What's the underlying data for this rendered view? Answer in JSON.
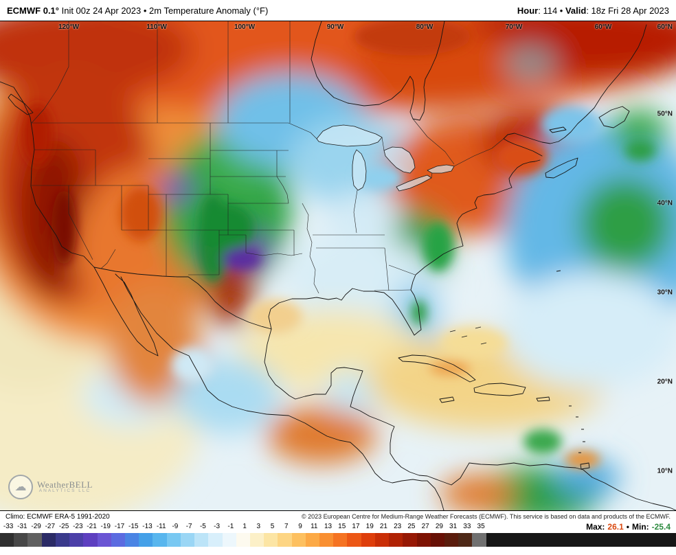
{
  "header": {
    "model": "ECMWF 0.1°",
    "init": " Init 00z 24 Apr 2023 • 2m Temperature Anomaly (°F)",
    "hour_label": "Hour",
    "hour_value": ": 114 • ",
    "valid_label": "Valid",
    "valid_value": ": 18z Fri 28 Apr 2023"
  },
  "map": {
    "lon_labels": [
      "120°W",
      "110°W",
      "100°W",
      "90°W",
      "80°W",
      "70°W",
      "60°W"
    ],
    "lat_labels": [
      "60°N",
      "50°N",
      "40°N",
      "30°N",
      "20°N",
      "10°N"
    ],
    "watermark_title": "WeatherBELL",
    "watermark_sub": "Analytics LLC"
  },
  "footer": {
    "climo": "Climo: ECMWF ERA-5 1991-2020",
    "copyright": "© 2023 European Centre for Medium-Range Weather Forecasts (ECMWF). This service is based on data and products of the ECMWF."
  },
  "colorbar": {
    "values": [
      "-33",
      "-31",
      "-29",
      "-27",
      "-25",
      "-23",
      "-21",
      "-19",
      "-17",
      "-15",
      "-13",
      "-11",
      "-9",
      "-7",
      "-5",
      "-3",
      "-1",
      "1",
      "3",
      "5",
      "7",
      "9",
      "11",
      "13",
      "15",
      "17",
      "19",
      "21",
      "23",
      "25",
      "27",
      "29",
      "31",
      "33",
      "35"
    ],
    "colors": [
      "#2f2f2f",
      "#474747",
      "#606060",
      "#2b2b66",
      "#3a3a8c",
      "#4b3fa8",
      "#5d3fc0",
      "#6a55d4",
      "#5b6be0",
      "#4a84e4",
      "#44a0e8",
      "#58b6ee",
      "#78c8f2",
      "#9ad6f5",
      "#bce4f8",
      "#d8effb",
      "#edf7fc",
      "#fdfaef",
      "#fcf0c8",
      "#fce5a4",
      "#fdd583",
      "#fdc05f",
      "#fca945",
      "#f98f31",
      "#f57322",
      "#ec5715",
      "#de3e0b",
      "#c92e06",
      "#b02204",
      "#961804",
      "#7d1202",
      "#671005",
      "#5a1c0c",
      "#4e2817",
      "#707070"
    ]
  },
  "stats": {
    "max_label": "Max:",
    "max_value": "26.1",
    "separator": "•",
    "min_label": "Min:",
    "min_value": "-25.4",
    "max_color": "#d9480f",
    "min_color": "#2b8a3e"
  }
}
